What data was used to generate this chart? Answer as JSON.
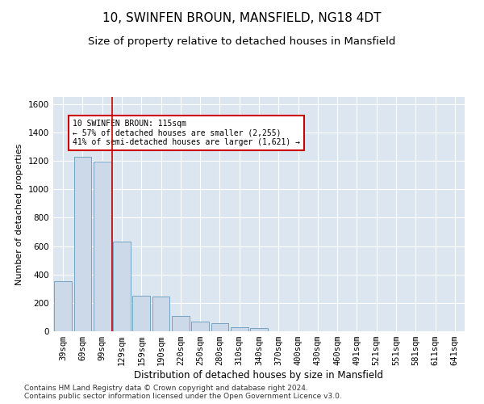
{
  "title": "10, SWINFEN BROUN, MANSFIELD, NG18 4DT",
  "subtitle": "Size of property relative to detached houses in Mansfield",
  "xlabel": "Distribution of detached houses by size in Mansfield",
  "ylabel": "Number of detached properties",
  "categories": [
    "39sqm",
    "69sqm",
    "99sqm",
    "129sqm",
    "159sqm",
    "190sqm",
    "220sqm",
    "250sqm",
    "280sqm",
    "310sqm",
    "340sqm",
    "370sqm",
    "400sqm",
    "430sqm",
    "460sqm",
    "491sqm",
    "521sqm",
    "551sqm",
    "581sqm",
    "611sqm",
    "641sqm"
  ],
  "values": [
    350,
    1230,
    1195,
    630,
    250,
    245,
    110,
    70,
    55,
    30,
    20,
    0,
    0,
    0,
    0,
    0,
    0,
    0,
    0,
    0,
    0
  ],
  "bar_color": "#ccd9e8",
  "bar_edge_color": "#6699bb",
  "red_line_x": 2.5,
  "annotation_text": "10 SWINFEN BROUN: 115sqm\n← 57% of detached houses are smaller (2,255)\n41% of semi-detached houses are larger (1,621) →",
  "annotation_box_color": "#ffffff",
  "annotation_box_edge": "#cc0000",
  "ylim": [
    0,
    1650
  ],
  "yticks": [
    0,
    200,
    400,
    600,
    800,
    1000,
    1200,
    1400,
    1600
  ],
  "background_color": "#dce6f0",
  "footer": "Contains HM Land Registry data © Crown copyright and database right 2024.\nContains public sector information licensed under the Open Government Licence v3.0.",
  "title_fontsize": 11,
  "subtitle_fontsize": 9.5,
  "xlabel_fontsize": 8.5,
  "ylabel_fontsize": 8,
  "tick_fontsize": 7.5,
  "footer_fontsize": 6.5,
  "ann_fontsize": 7
}
